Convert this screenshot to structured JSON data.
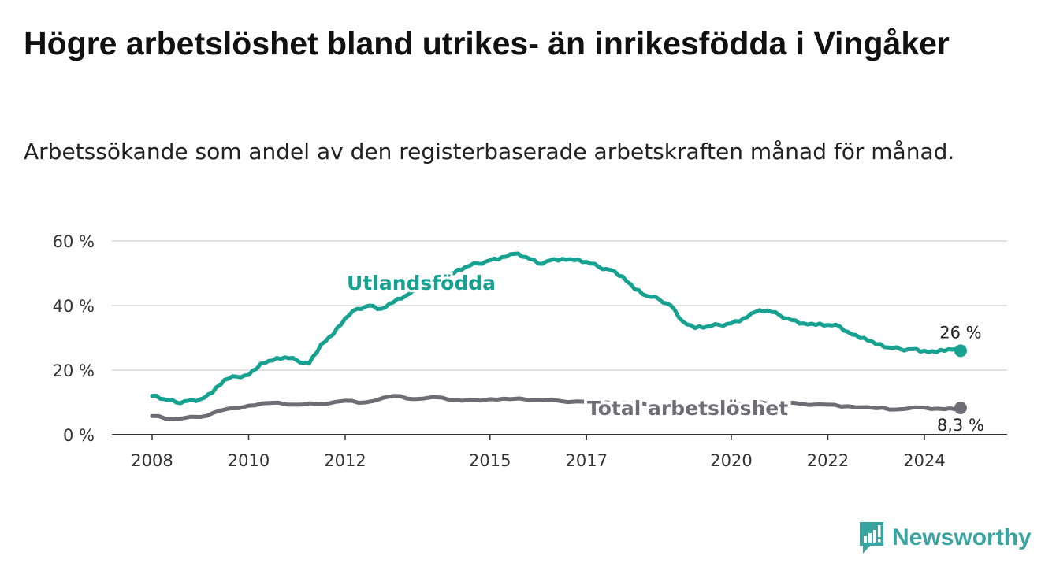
{
  "title": "Högre arbetslöshet bland utrikes- än inrikesfödda i Vingåker",
  "subtitle": "Arbetssökande som andel av den registerbaserade arbetskraften månad för månad.",
  "brand": {
    "name": "Newsworthy",
    "icon": "bar-chart-logo-icon",
    "color": "#3aa4a0"
  },
  "colors": {
    "foreign_born": "#17a191",
    "total": "#6e6d76",
    "grid": "#d9d9d9",
    "axis": "#333333"
  },
  "chart_data": {
    "type": "line",
    "x_ticks": [
      "2008",
      "2010",
      "2012",
      "2015",
      "2017",
      "2020",
      "2022",
      "2024"
    ],
    "y_ticks": [
      "0 %",
      "20 %",
      "40 %",
      "60 %"
    ],
    "ylim": [
      0,
      60
    ],
    "grid": true,
    "series": [
      {
        "name": "Utlandsfödda",
        "end_label": "26 %",
        "points": [
          [
            "2008-01",
            12
          ],
          [
            "2008-04",
            11
          ],
          [
            "2008-07",
            10
          ],
          [
            "2008-10",
            10.5
          ],
          [
            "2009-01",
            11
          ],
          [
            "2009-04",
            13
          ],
          [
            "2009-07",
            17
          ],
          [
            "2009-10",
            18
          ],
          [
            "2010-01",
            18.5
          ],
          [
            "2010-04",
            22
          ],
          [
            "2010-07",
            23
          ],
          [
            "2010-10",
            24
          ],
          [
            "2011-01",
            23
          ],
          [
            "2011-04",
            22
          ],
          [
            "2011-07",
            28
          ],
          [
            "2011-10",
            31
          ],
          [
            "2012-01",
            36
          ],
          [
            "2012-04",
            39
          ],
          [
            "2012-07",
            40
          ],
          [
            "2012-10",
            39
          ],
          [
            "2013-01",
            41
          ],
          [
            "2013-04",
            43
          ],
          [
            "2013-07",
            45
          ],
          [
            "2013-10",
            47
          ],
          [
            "2014-01",
            49
          ],
          [
            "2014-04",
            50
          ],
          [
            "2014-07",
            52
          ],
          [
            "2014-10",
            53
          ],
          [
            "2015-01",
            54
          ],
          [
            "2015-04",
            55
          ],
          [
            "2015-07",
            56
          ],
          [
            "2015-10",
            55
          ],
          [
            "2016-01",
            53
          ],
          [
            "2016-04",
            54
          ],
          [
            "2016-07",
            54.5
          ],
          [
            "2016-10",
            54
          ],
          [
            "2017-01",
            53.5
          ],
          [
            "2017-04",
            52
          ],
          [
            "2017-07",
            51
          ],
          [
            "2017-10",
            49
          ],
          [
            "2018-01",
            45
          ],
          [
            "2018-04",
            43
          ],
          [
            "2018-07",
            42
          ],
          [
            "2018-10",
            40
          ],
          [
            "2019-01",
            35
          ],
          [
            "2019-04",
            33
          ],
          [
            "2019-07",
            33.5
          ],
          [
            "2019-10",
            34
          ],
          [
            "2020-01",
            34.5
          ],
          [
            "2020-04",
            36
          ],
          [
            "2020-07",
            38
          ],
          [
            "2020-10",
            38.5
          ],
          [
            "2021-01",
            37
          ],
          [
            "2021-04",
            35.5
          ],
          [
            "2021-07",
            34.5
          ],
          [
            "2021-10",
            34
          ],
          [
            "2022-01",
            34
          ],
          [
            "2022-04",
            33.5
          ],
          [
            "2022-07",
            31
          ],
          [
            "2022-10",
            30
          ],
          [
            "2023-01",
            28
          ],
          [
            "2023-04",
            27
          ],
          [
            "2023-07",
            26.5
          ],
          [
            "2023-10",
            26.5
          ],
          [
            "2024-01",
            26
          ],
          [
            "2024-04",
            25.5
          ],
          [
            "2024-07",
            26.5
          ],
          [
            "2024-10",
            26
          ]
        ]
      },
      {
        "name": "Total arbetslöshet",
        "end_label": "8,3 %",
        "points": [
          [
            "2008-01",
            5.8
          ],
          [
            "2008-06",
            4.8
          ],
          [
            "2009-01",
            5.5
          ],
          [
            "2009-06",
            7.5
          ],
          [
            "2010-01",
            9
          ],
          [
            "2010-06",
            9.8
          ],
          [
            "2011-01",
            9.3
          ],
          [
            "2011-06",
            9.5
          ],
          [
            "2012-01",
            10.5
          ],
          [
            "2012-06",
            10
          ],
          [
            "2013-01",
            12
          ],
          [
            "2013-06",
            11
          ],
          [
            "2014-01",
            11.5
          ],
          [
            "2014-06",
            10.5
          ],
          [
            "2015-01",
            11
          ],
          [
            "2015-06",
            11
          ],
          [
            "2016-01",
            10.8
          ],
          [
            "2016-06",
            10.5
          ],
          [
            "2017-01",
            10.2
          ],
          [
            "2017-06",
            10
          ],
          [
            "2018-01",
            9.5
          ],
          [
            "2018-06",
            9.3
          ],
          [
            "2019-01",
            9.2
          ],
          [
            "2019-06",
            9.4
          ],
          [
            "2020-01",
            9.5
          ],
          [
            "2020-06",
            9.7
          ],
          [
            "2021-01",
            9.7
          ],
          [
            "2021-06",
            9.6
          ],
          [
            "2022-01",
            9.3
          ],
          [
            "2022-06",
            8.8
          ],
          [
            "2023-01",
            8.2
          ],
          [
            "2023-06",
            7.8
          ],
          [
            "2024-01",
            8.4
          ],
          [
            "2024-06",
            7.9
          ],
          [
            "2024-10",
            8.3
          ]
        ]
      }
    ]
  }
}
